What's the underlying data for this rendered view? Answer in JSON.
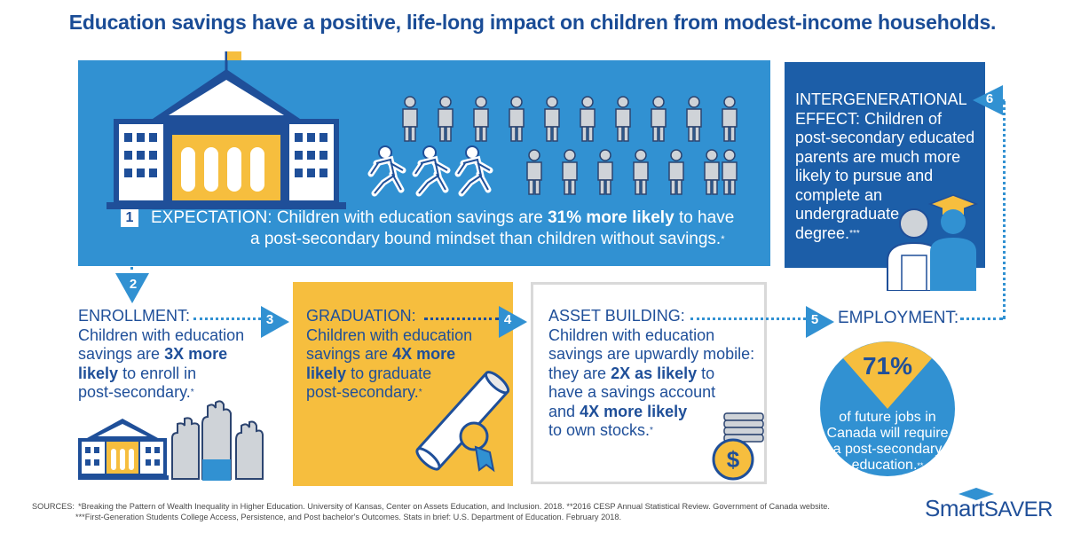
{
  "title": "Education savings have a positive, life-long impact on children from modest-income households.",
  "step1": {
    "number": "1",
    "label": "EXPECTATION:",
    "text_a": "Children with education savings are",
    "highlight": "31% more likely",
    "text_b": "to have",
    "line2": "a post-secondary bound mindset than children without savings.",
    "footnote": "*"
  },
  "step2": {
    "number": "2",
    "label": "ENROLLMENT:",
    "l1": "Children with education",
    "l2a": "savings are",
    "l2b": "3X more",
    "l3a": "likely",
    "l3b": "to enroll in",
    "l4": "post-secondary.",
    "footnote": "*"
  },
  "step3": {
    "number": "3",
    "label": "GRADUATION:",
    "l1": "Children with education",
    "l2a": "savings are",
    "l2b": "4X more",
    "l3a": "likely",
    "l3b": "to graduate",
    "l4": "post-secondary.",
    "footnote": "*"
  },
  "step4": {
    "number": "4",
    "label": "ASSET BUILDING:",
    "l1": "Children with education",
    "l2": "savings are upwardly mobile:",
    "l3a": "they are",
    "l3b": "2X as likely",
    "l3c": "to",
    "l4": "have a savings account",
    "l5a": "and",
    "l5b": "4X more likely",
    "l6": "to own stocks.",
    "footnote": "*"
  },
  "step5": {
    "number": "5",
    "label": "EMPLOYMENT:",
    "percent": "71%",
    "l1": "of future jobs in",
    "l2": "Canada will require",
    "l3": "a post-secondary",
    "l4": "education.",
    "footnote": "**"
  },
  "step6": {
    "number": "6",
    "l1": "INTERGENERATIONAL",
    "l2": "EFFECT: Children of",
    "l3": "post-secondary educated",
    "l4": "parents are much more",
    "l5": "likely to pursue and",
    "l6": "complete an",
    "l7": "undergraduate",
    "l8": "degree.",
    "footnote": "***"
  },
  "sources": {
    "label": "SOURCES:",
    "line1": "*Breaking the Pattern of Wealth Inequality in Higher Education. University of Kansas, Center on Assets Education, and Inclusion. 2018. **2016 CESP Annual Statistical Review. Government of Canada website.",
    "line2": "***First-Generation Students College Access, Persistence, and Post bachelor's Outcomes. Stats in brief: U.S. Department of Education. February 2018."
  },
  "logo": {
    "part1": "Smart",
    "part2": "SAVER"
  },
  "colors": {
    "navy": "#1f4f99",
    "sky": "#3191d2",
    "gold": "#f6be3e",
    "dark_panel": "#1c5ea8"
  }
}
